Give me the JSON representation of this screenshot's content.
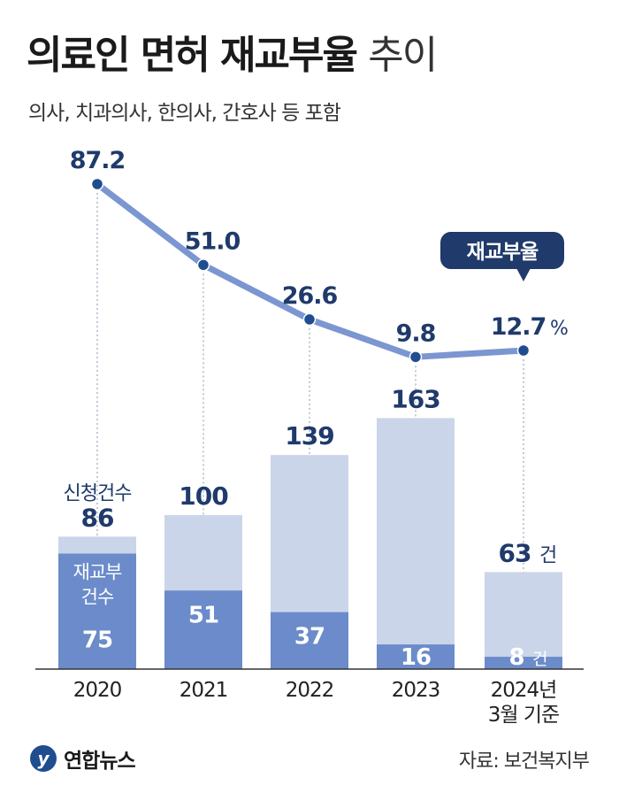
{
  "header": {
    "title_bold": "의료인 면허 재교부율",
    "title_light": "추이",
    "subtitle": "의사, 치과의사, 한의사, 간호사 등 포함"
  },
  "footer": {
    "logo_text": "연합뉴스",
    "source": "자료: 보건복지부"
  },
  "colors": {
    "line": "#7b96d0",
    "point": "#1f4d8f",
    "bar_total": "#cad5ea",
    "bar_reissued": "#6b8bca",
    "label_dark": "#1f3a6b"
  },
  "chart_data": {
    "type": "bar+line",
    "categories": [
      "2020",
      "2021",
      "2022",
      "2023",
      "2024년"
    ],
    "category_sublabels": [
      "",
      "",
      "",
      "",
      "3월 기준"
    ],
    "series": [
      {
        "name": "신청건수",
        "type": "bar",
        "values": [
          86,
          100,
          139,
          163,
          63
        ]
      },
      {
        "name": "재교부 건수",
        "type": "bar",
        "values": [
          75,
          51,
          37,
          16,
          8
        ]
      },
      {
        "name": "재교부율",
        "type": "line",
        "values": [
          87.2,
          51.0,
          26.6,
          9.8,
          12.7
        ]
      }
    ],
    "line_labels": [
      "87.2",
      "51.0",
      "26.6",
      "9.8",
      "12.7"
    ],
    "total_labels": [
      "86",
      "100",
      "139",
      "163",
      "63"
    ],
    "reissued_labels": [
      "75",
      "51",
      "37",
      "16",
      "8"
    ],
    "legend_total": "신청건수",
    "legend_reissued_line1": "재교부",
    "legend_reissued_line2": "건수",
    "line_callout": "재교부율",
    "unit_percent": "%",
    "unit_count": "건"
  }
}
